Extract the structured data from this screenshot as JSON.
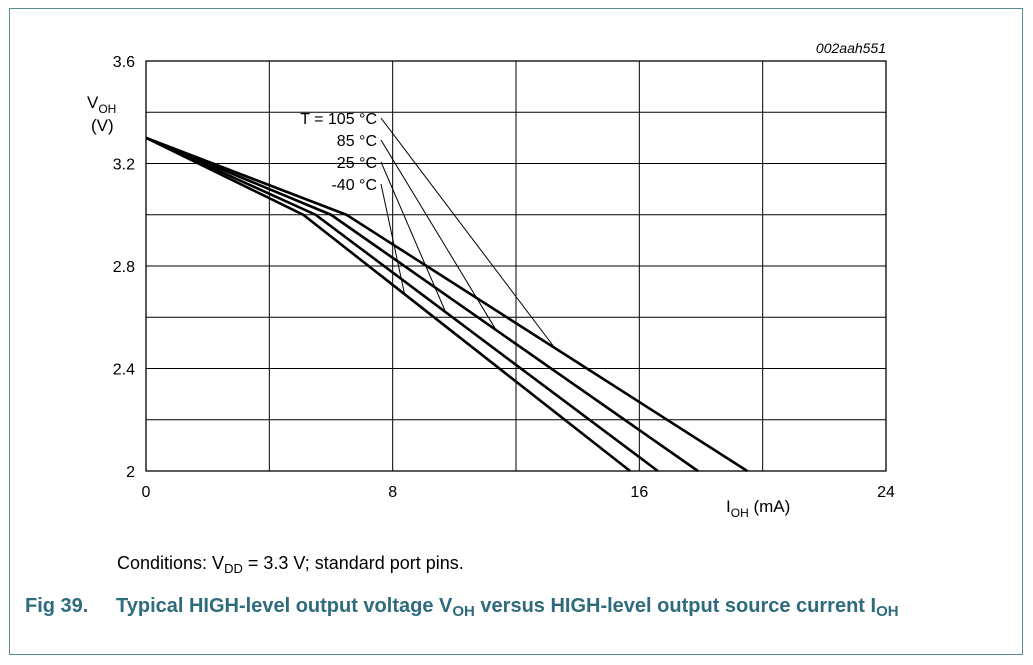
{
  "chart_data": {
    "type": "line",
    "figure_id": "002aah551",
    "ylabel_main": "V",
    "ylabel_sub": "OH",
    "ylabel_unit": "(V)",
    "xlabel_main": "I",
    "xlabel_sub": "OH",
    "xlabel_unit": "(mA)",
    "xlim": [
      0,
      24
    ],
    "ylim": [
      2,
      3.6
    ],
    "x_ticks": [
      0,
      8,
      16,
      24
    ],
    "y_ticks": [
      2,
      2.4,
      2.8,
      3.2,
      3.6
    ],
    "x_tick_labels": [
      "0",
      "8",
      "16",
      "24"
    ],
    "y_tick_labels": [
      "2",
      "2.4",
      "2.8",
      "3.2",
      "3.6"
    ],
    "grid": true,
    "series": [
      {
        "name": "T = 105 °C",
        "x": [
          0,
          6.5,
          19.5
        ],
        "y": [
          3.3,
          3.0,
          2.0
        ]
      },
      {
        "name": "85 °C",
        "x": [
          0,
          6.0,
          17.9
        ],
        "y": [
          3.3,
          3.0,
          2.0
        ]
      },
      {
        "name": "25 °C",
        "x": [
          0,
          5.5,
          16.6
        ],
        "y": [
          3.3,
          3.0,
          2.0
        ]
      },
      {
        "name": "-40 °C",
        "x": [
          0,
          5.1,
          15.7
        ],
        "y": [
          3.3,
          3.0,
          2.0
        ]
      }
    ]
  },
  "conditions": {
    "prefix": "Conditions: V",
    "sub": "DD",
    "suffix": " = 3.3 V; standard port pins."
  },
  "caption": {
    "number": "Fig 39.",
    "text_part1": "Typical HIGH-level output voltage V",
    "sub1": "OH",
    "text_part2": " versus HIGH-level output source current I",
    "sub2": "OH"
  },
  "colors": {
    "caption": "#2e6b7d",
    "frame": "#5a8a96"
  }
}
